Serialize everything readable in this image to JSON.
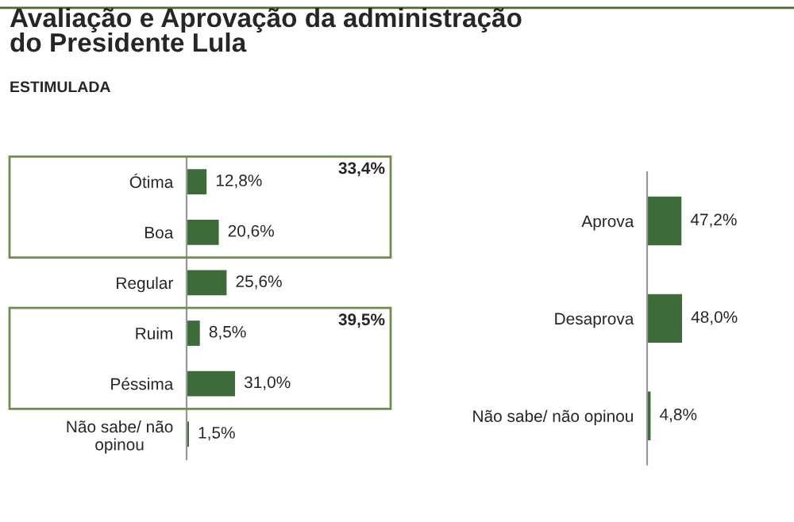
{
  "chart_data": [
    {
      "type": "bar",
      "orientation": "horizontal",
      "title": "Avaliação e Aprovação da administração\ndo Presidente Lula",
      "subtitle": "ESTIMULADA",
      "categories": [
        "Ótima",
        "Boa",
        "Regular",
        "Ruim",
        "Péssima",
        "Não sabe/ não\nopinou"
      ],
      "values": [
        12.8,
        20.6,
        25.6,
        8.5,
        31.0,
        1.5
      ],
      "color": "#3d6b3a",
      "value_labels": [
        "12,8%",
        "20,6%",
        "25,6%",
        "8,5%",
        "31,0%",
        "1,5%"
      ],
      "annotations": [
        "33,4%",
        "39,5%"
      ],
      "tick_labels": "y",
      "grid": false,
      "legend": false
    },
    {
      "type": "bar",
      "orientation": "horizontal",
      "categories": [
        "Aprova",
        "Desaprova",
        "Não sabe/ não opinou"
      ],
      "values": [
        47.2,
        48.0,
        4.8
      ],
      "color": "#3d6b3a",
      "value_labels": [
        "47,2%",
        "48,0%",
        "4,8%"
      ],
      "tick_labels": "y",
      "grid": false,
      "legend": false
    }
  ]
}
